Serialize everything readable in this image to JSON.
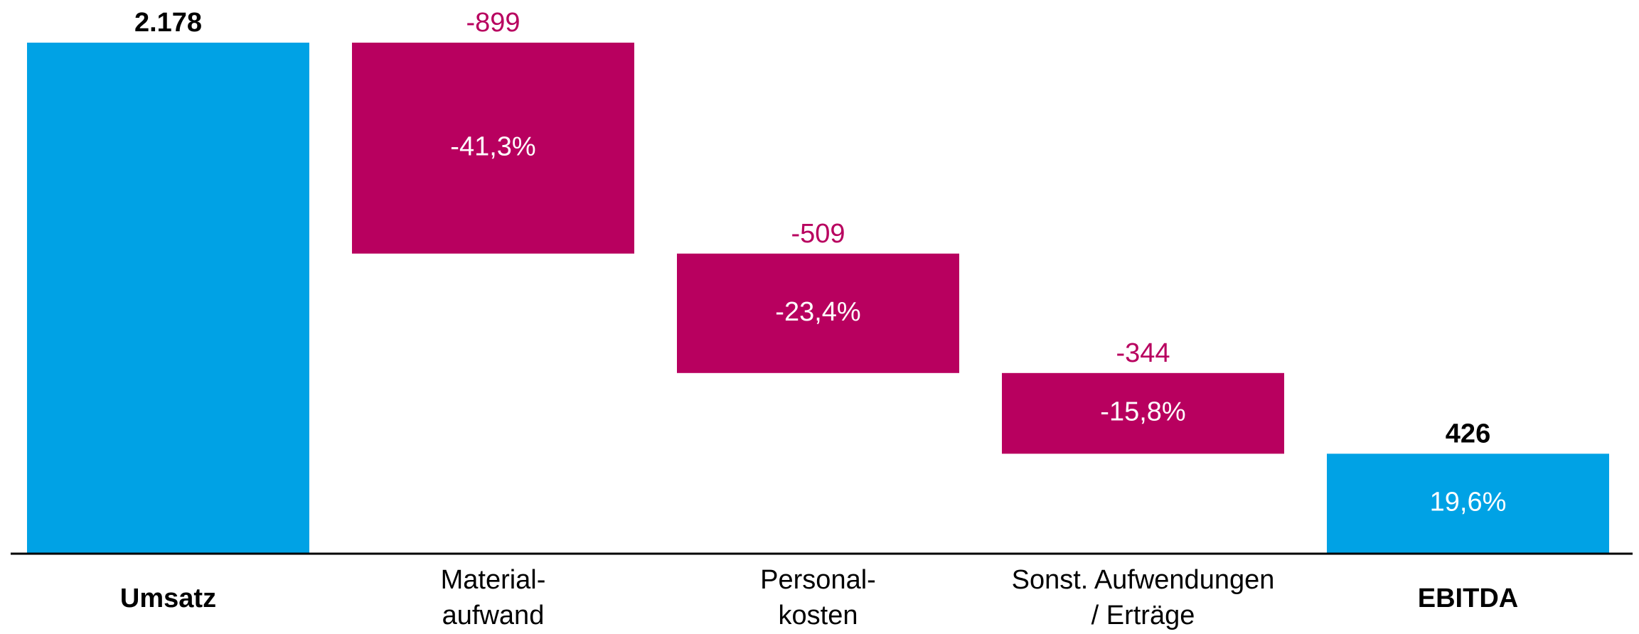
{
  "chart_data": {
    "type": "waterfall",
    "categories": [
      "Umsatz",
      "Material-\naufwand",
      "Personal-\nkosten",
      "Sonst. Aufwendungen\n/ Erträge",
      "EBITDA"
    ],
    "kinds": [
      "total",
      "delta",
      "delta",
      "delta",
      "total"
    ],
    "values": [
      2178,
      -899,
      -509,
      -344,
      426
    ],
    "value_labels": [
      "2.178",
      "-899",
      "-509",
      "-344",
      "426"
    ],
    "share_labels": [
      null,
      "-41,3%",
      "-23,4%",
      "-15,8%",
      "19,6%"
    ],
    "colors": {
      "total": "#00a2e5",
      "delta": "#b8005f"
    },
    "ylim": [
      0,
      2178
    ]
  }
}
